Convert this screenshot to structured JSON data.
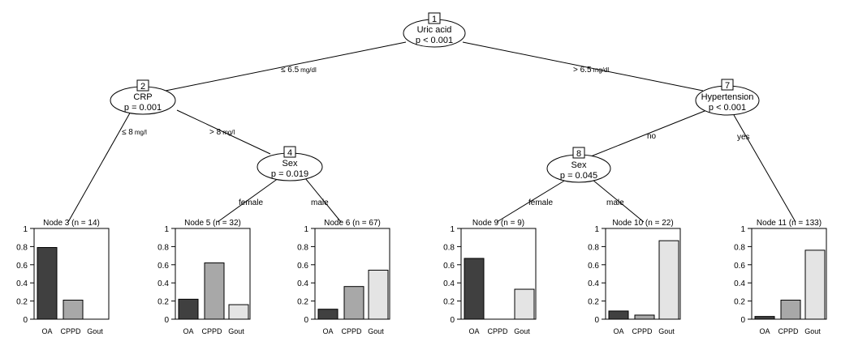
{
  "tree": {
    "inner_nodes": [
      {
        "id": "1",
        "variable": "Uric acid",
        "p": "p < 0.001"
      },
      {
        "id": "2",
        "variable": "CRP",
        "p": "p = 0.001"
      },
      {
        "id": "4",
        "variable": "Sex",
        "p": "p = 0.019"
      },
      {
        "id": "7",
        "variable": "Hypertension",
        "p": "p < 0.001"
      },
      {
        "id": "8",
        "variable": "Sex",
        "p": "p = 0.045"
      }
    ],
    "edges": {
      "e1_left": {
        "value": "≤ 6.5",
        "unit": "mg/dl"
      },
      "e1_right": {
        "value": "> 6.5",
        "unit": "mg/dl"
      },
      "e2_left": {
        "value": "≤ 8",
        "unit": "mg/l"
      },
      "e2_right": {
        "value": "> 8",
        "unit": "mg/l"
      },
      "e4_left": {
        "value": "female",
        "unit": ""
      },
      "e4_right": {
        "value": "male",
        "unit": ""
      },
      "e7_left": {
        "value": "no",
        "unit": ""
      },
      "e7_right": {
        "value": "yes",
        "unit": ""
      },
      "e8_left": {
        "value": "female",
        "unit": ""
      },
      "e8_right": {
        "value": "male",
        "unit": ""
      }
    }
  },
  "colors": {
    "OA": "#404040",
    "CPPD": "#a8a8a8",
    "Gout": "#e4e4e4"
  },
  "chart_data": {
    "type": "bar",
    "categories": [
      "OA",
      "CPPD",
      "Gout"
    ],
    "yticks": [
      "0",
      "0.2",
      "0.4",
      "0.6",
      "0.8",
      "1"
    ],
    "ylim": [
      0,
      1
    ],
    "panels": [
      {
        "title": "Node 3 (n = 14)",
        "values": [
          0.79,
          0.21,
          0.0
        ]
      },
      {
        "title": "Node 5 (n = 32)",
        "values": [
          0.22,
          0.62,
          0.16
        ]
      },
      {
        "title": "Node 6 (n = 67)",
        "values": [
          0.11,
          0.36,
          0.54
        ]
      },
      {
        "title": "Node 9 (n = 9)",
        "values": [
          0.67,
          0.0,
          0.33
        ]
      },
      {
        "title": "Node 10 (n = 22)",
        "values": [
          0.09,
          0.045,
          0.865
        ]
      },
      {
        "title": "Node 11 (n = 133)",
        "values": [
          0.03,
          0.21,
          0.76
        ]
      }
    ]
  }
}
